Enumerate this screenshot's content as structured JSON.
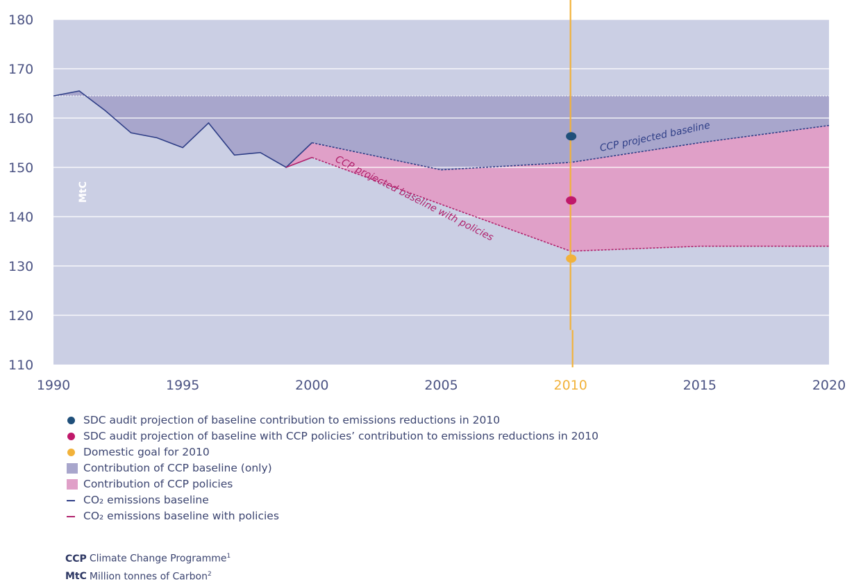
{
  "chart_data": {
    "type": "area",
    "xlim": [
      1990,
      2020
    ],
    "ylim": [
      110,
      180
    ],
    "x_ticks": [
      "1990",
      "1995",
      "2000",
      "2005",
      "2010",
      "2015",
      "2020"
    ],
    "y_ticks": [
      "110",
      "120",
      "130",
      "140",
      "150",
      "160",
      "170",
      "180"
    ],
    "highlight_x_tick": "2010",
    "ylabel": "MtC",
    "grid": true,
    "reference_level": 164.5,
    "series": [
      {
        "name": "CO2 emissions baseline",
        "kind": "historical",
        "color": "#2d3d86",
        "x": [
          1990,
          1991,
          1992,
          1993,
          1994,
          1995,
          1996,
          1997,
          1998,
          1999,
          2000
        ],
        "y": [
          164.5,
          165.5,
          161.5,
          157.0,
          156.0,
          154.0,
          159.0,
          152.5,
          153.0,
          150.0,
          155.0
        ]
      },
      {
        "name": "CO2 emissions baseline with policies",
        "kind": "historical",
        "color": "#b0206b",
        "x": [
          1999,
          2000
        ],
        "y": [
          150.0,
          152.0
        ]
      },
      {
        "name": "CCP projected baseline",
        "kind": "projection",
        "color": "#2d3d86",
        "x": [
          2000,
          2005,
          2010,
          2015,
          2020
        ],
        "y": [
          155.0,
          149.5,
          151.0,
          155.0,
          158.5
        ]
      },
      {
        "name": "CCP projected baseline with policies",
        "kind": "projection",
        "color": "#b0206b",
        "x": [
          2000,
          2005,
          2010,
          2015,
          2020
        ],
        "y": [
          152.0,
          142.5,
          133.0,
          134.0,
          134.0
        ]
      }
    ],
    "points": [
      {
        "x": 2010,
        "y": 156.3,
        "color": "#1f4f7a",
        "shape": "circle"
      },
      {
        "x": 2010,
        "y": 143.3,
        "color": "#c0186a",
        "shape": "circle"
      },
      {
        "x": 2010,
        "y": 131.5,
        "color": "#f2b23a",
        "shape": "circle"
      }
    ],
    "vertical_line": {
      "x": 2010,
      "color": "#f2b23a"
    },
    "curve_labels": {
      "baseline": "CCP projected baseline",
      "policies": "CCP projected baseline with policies"
    },
    "colors": {
      "plot_bg": "#cbcfe4",
      "baseline_fill": "#a8a6cc",
      "policies_fill": "#e0a0c8",
      "grid": "#ffffff"
    }
  },
  "legend": [
    {
      "symbol": "dot",
      "color": "#1f4f7a",
      "label": "SDC audit projection of baseline contribution to emissions reductions in 2010"
    },
    {
      "symbol": "dot",
      "color": "#c0186a",
      "label": "SDC audit projection of baseline with CCP policies’ contribution to emissions reductions in 2010"
    },
    {
      "symbol": "dot",
      "color": "#f2b23a",
      "label": "Domestic goal for 2010"
    },
    {
      "symbol": "square",
      "color": "#a8a6cc",
      "label": "Contribution of CCP baseline (only)"
    },
    {
      "symbol": "square",
      "color": "#e0a0c8",
      "label": "Contribution of CCP policies"
    },
    {
      "symbol": "line",
      "color": "#2d3d86",
      "label": "CO₂ emissions baseline"
    },
    {
      "symbol": "line",
      "color": "#b0206b",
      "label": "CO₂ emissions baseline with policies"
    }
  ],
  "notes": [
    {
      "abbr": "CCP",
      "text": "Climate Change Programme",
      "sup": "1"
    },
    {
      "abbr": "MtC",
      "text": "Million tonnes of Carbon",
      "sup": "2"
    }
  ]
}
